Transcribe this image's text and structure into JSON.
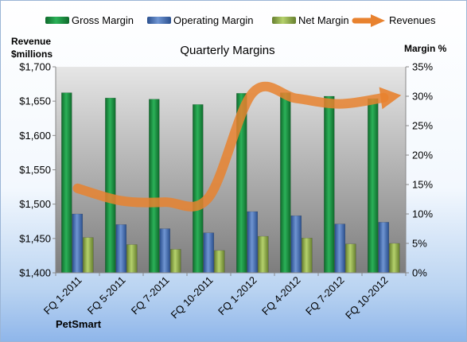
{
  "chart_data": {
    "type": "bar",
    "title": "Quarterly Margins",
    "left_axis_title": [
      "Revenue",
      "$millions"
    ],
    "right_axis_title": "Margin %",
    "categories": [
      "FQ 1-2011",
      "FQ 5-2011",
      "FQ 7-2011",
      "FQ 10-2011",
      "FQ 1-2012",
      "FQ 4-2012",
      "FQ 7-2012",
      "FQ 10-2012"
    ],
    "left_axis": {
      "ylim": [
        1400,
        1700
      ],
      "ticks": [
        1400,
        1450,
        1500,
        1550,
        1600,
        1650,
        1700
      ],
      "tick_labels": [
        "$1,400",
        "$1,450",
        "$1,500",
        "$1,550",
        "$1,600",
        "$1,650",
        "$1,700"
      ]
    },
    "right_axis": {
      "ylim": [
        0,
        35
      ],
      "ticks": [
        0,
        5,
        10,
        15,
        20,
        25,
        30,
        35
      ],
      "tick_labels": [
        "0%",
        "5%",
        "10%",
        "15%",
        "20%",
        "25%",
        "30%",
        "35%"
      ]
    },
    "series": [
      {
        "name": "Gross Margin",
        "type": "bar",
        "axis": "right",
        "color": "#1a8a3c",
        "values": [
          30.6,
          29.7,
          29.5,
          28.6,
          30.5,
          30.6,
          30.0,
          29.6
        ]
      },
      {
        "name": "Operating Margin",
        "type": "bar",
        "axis": "right",
        "color": "#3f6db3",
        "values": [
          10.0,
          8.2,
          7.5,
          6.8,
          10.4,
          9.7,
          8.3,
          8.6
        ]
      },
      {
        "name": "Net Margin",
        "type": "bar",
        "axis": "right",
        "color": "#8db04a",
        "values": [
          6.0,
          4.8,
          4.0,
          3.8,
          6.2,
          5.9,
          4.9,
          5.0
        ]
      },
      {
        "name": "Revenues",
        "type": "line",
        "axis": "left",
        "color": "#e8822f",
        "values": [
          1523,
          1505,
          1503,
          1510,
          1662,
          1654,
          1646,
          1655
        ]
      }
    ],
    "legend_position": "top",
    "grid": false
  },
  "footer": {
    "company": "PetSmart"
  }
}
